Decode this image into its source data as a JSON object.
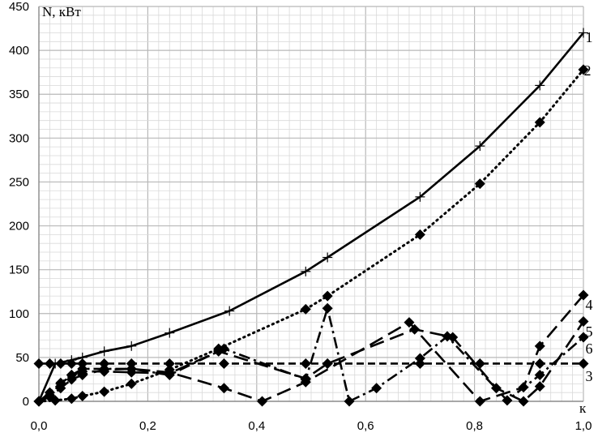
{
  "chart_data": {
    "type": "line",
    "ylabel": "N, кВт",
    "xlabel": "к",
    "xlim": [
      0,
      1
    ],
    "ylim": [
      0,
      450
    ],
    "x_ticks": [
      "0,0",
      "0,2",
      "0,4",
      "0,6",
      "0,8",
      "1,0"
    ],
    "y_ticks": [
      "0",
      "50",
      "100",
      "150",
      "200",
      "250",
      "300",
      "350",
      "400",
      "450"
    ],
    "grid": true,
    "series": [
      {
        "name": "1",
        "style": "solid",
        "marker": "plus",
        "points": [
          [
            0.0,
            0
          ],
          [
            0.03,
            43
          ],
          [
            0.06,
            47
          ],
          [
            0.08,
            50
          ],
          [
            0.12,
            57
          ],
          [
            0.17,
            63
          ],
          [
            0.24,
            78
          ],
          [
            0.35,
            103
          ],
          [
            0.49,
            148
          ],
          [
            0.53,
            164
          ],
          [
            0.7,
            233
          ],
          [
            0.81,
            291
          ],
          [
            0.92,
            360
          ],
          [
            1.0,
            420
          ]
        ]
      },
      {
        "name": "2",
        "style": "dotted",
        "marker": "diamond",
        "points": [
          [
            0.0,
            0
          ],
          [
            0.03,
            1
          ],
          [
            0.06,
            3
          ],
          [
            0.08,
            6
          ],
          [
            0.12,
            11
          ],
          [
            0.17,
            20
          ],
          [
            0.24,
            36
          ],
          [
            0.33,
            60
          ],
          [
            0.49,
            105
          ],
          [
            0.53,
            120
          ],
          [
            0.7,
            190
          ],
          [
            0.81,
            248
          ],
          [
            0.92,
            318
          ],
          [
            1.0,
            378
          ]
        ]
      },
      {
        "name": "3",
        "style": "dashed",
        "marker": "diamond",
        "points": [
          [
            0.0,
            43
          ],
          [
            0.02,
            43
          ],
          [
            0.04,
            43
          ],
          [
            0.06,
            43
          ],
          [
            0.08,
            43
          ],
          [
            0.12,
            43
          ],
          [
            0.17,
            43
          ],
          [
            0.24,
            43
          ],
          [
            0.34,
            43
          ],
          [
            0.49,
            43
          ],
          [
            0.53,
            43
          ],
          [
            0.7,
            43
          ],
          [
            0.81,
            43
          ],
          [
            0.92,
            43
          ],
          [
            1.0,
            43
          ]
        ]
      },
      {
        "name": "4",
        "style": "long-dash",
        "marker": "diamond",
        "points": [
          [
            0.0,
            0
          ],
          [
            0.02,
            5
          ],
          [
            0.04,
            15
          ],
          [
            0.06,
            25
          ],
          [
            0.08,
            30
          ],
          [
            0.12,
            36
          ],
          [
            0.17,
            37
          ],
          [
            0.24,
            33
          ],
          [
            0.34,
            15
          ],
          [
            0.41,
            0
          ],
          [
            0.49,
            22
          ],
          [
            0.68,
            90
          ],
          [
            0.81,
            0
          ],
          [
            0.89,
            16
          ],
          [
            0.92,
            63
          ],
          [
            1.0,
            121
          ]
        ]
      },
      {
        "name": "5",
        "style": "long-dash",
        "marker": "diamond",
        "points": [
          [
            0.0,
            0
          ],
          [
            0.02,
            7
          ],
          [
            0.04,
            20
          ],
          [
            0.06,
            30
          ],
          [
            0.08,
            34
          ],
          [
            0.12,
            34
          ],
          [
            0.17,
            33
          ],
          [
            0.24,
            32
          ],
          [
            0.33,
            57
          ],
          [
            0.49,
            26
          ],
          [
            0.53,
            43
          ],
          [
            0.69,
            82
          ],
          [
            0.76,
            73
          ],
          [
            0.84,
            15
          ],
          [
            0.89,
            0
          ],
          [
            0.92,
            17
          ],
          [
            1.0,
            91
          ]
        ]
      },
      {
        "name": "6",
        "style": "dash-dot",
        "marker": "diamond",
        "points": [
          [
            0.0,
            0
          ],
          [
            0.02,
            10
          ],
          [
            0.04,
            21
          ],
          [
            0.06,
            30
          ],
          [
            0.08,
            37
          ],
          [
            0.12,
            37
          ],
          [
            0.17,
            37
          ],
          [
            0.24,
            30
          ],
          [
            0.34,
            60
          ],
          [
            0.49,
            25
          ],
          [
            0.53,
            106
          ],
          [
            0.57,
            0
          ],
          [
            0.62,
            15
          ],
          [
            0.7,
            49
          ],
          [
            0.75,
            74
          ],
          [
            0.86,
            1
          ],
          [
            0.92,
            30
          ],
          [
            1.0,
            73
          ]
        ]
      }
    ]
  }
}
